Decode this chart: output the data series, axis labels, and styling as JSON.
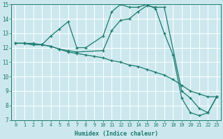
{
  "xlabel": "Humidex (Indice chaleur)",
  "xlim": [
    -0.5,
    23.5
  ],
  "ylim": [
    7,
    15
  ],
  "xticks": [
    0,
    1,
    2,
    3,
    4,
    5,
    6,
    7,
    8,
    9,
    10,
    11,
    12,
    13,
    14,
    15,
    16,
    17,
    18,
    19,
    20,
    21,
    22,
    23
  ],
  "yticks": [
    7,
    8,
    9,
    10,
    11,
    12,
    13,
    14,
    15
  ],
  "bg_color": "#cce8ee",
  "line_color": "#1a7a6e",
  "grid_color": "#ffffff",
  "lines": [
    {
      "x": [
        0,
        1,
        2,
        3,
        4,
        5,
        6,
        7,
        8,
        10,
        11,
        12,
        13,
        14,
        15,
        16,
        17,
        18,
        19,
        20,
        21,
        22,
        23
      ],
      "y": [
        12.3,
        12.3,
        12.3,
        12.2,
        12.8,
        13.3,
        13.8,
        12.0,
        12.0,
        12.8,
        14.5,
        15.0,
        14.8,
        14.8,
        15.0,
        14.7,
        13.0,
        11.5,
        8.5,
        7.5,
        7.3,
        7.5,
        8.6
      ]
    },
    {
      "x": [
        0,
        1,
        2,
        3,
        4,
        5,
        6,
        7,
        10,
        11,
        12,
        13,
        14,
        15,
        16,
        17,
        19,
        20,
        21,
        22,
        23
      ],
      "y": [
        12.3,
        12.3,
        12.2,
        12.2,
        12.1,
        11.9,
        11.8,
        11.7,
        11.8,
        13.2,
        13.9,
        14.0,
        14.5,
        14.9,
        14.8,
        14.8,
        9.0,
        8.5,
        7.8,
        7.5,
        8.6
      ]
    },
    {
      "x": [
        0,
        1,
        2,
        3,
        4,
        5,
        6,
        7,
        8,
        9,
        10,
        11,
        12,
        13,
        14,
        15,
        16,
        17,
        18,
        19,
        20,
        21,
        22,
        23
      ],
      "y": [
        12.3,
        12.3,
        12.2,
        12.2,
        12.1,
        11.9,
        11.7,
        11.6,
        11.5,
        11.4,
        11.3,
        11.1,
        11.0,
        10.8,
        10.7,
        10.5,
        10.3,
        10.1,
        9.8,
        9.4,
        9.0,
        8.8,
        8.6,
        8.6
      ]
    }
  ]
}
